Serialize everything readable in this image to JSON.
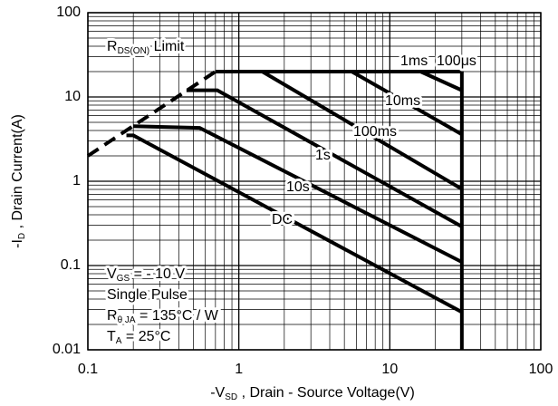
{
  "chart_data": {
    "type": "line",
    "xlabel": [
      {
        "text": "-V"
      },
      {
        "sub": "SD"
      },
      {
        "text": " , Drain - Source Voltage(V)"
      }
    ],
    "ylabel": [
      {
        "text": "-I"
      },
      {
        "sub": "D"
      },
      {
        "text": " , Drain Current(A)"
      }
    ],
    "xscale": "log",
    "yscale": "log",
    "grid": true,
    "xlim": [
      0.1,
      100
    ],
    "ylim": [
      0.01,
      100
    ],
    "xticks": [
      0.1,
      1,
      10,
      100
    ],
    "yticks": [
      0.01,
      0.1,
      1,
      10,
      100
    ],
    "color": "#000000",
    "series": [
      {
        "style": "dashed",
        "x": [
          0.1,
          0.7
        ],
        "values": [
          2,
          20
        ]
      },
      {
        "style": "solid",
        "x": [
          0.7,
          30,
          30
        ],
        "values": [
          20,
          20,
          0.01
        ]
      },
      {
        "name": "DC",
        "style": "solid",
        "x": [
          0.18,
          0.2,
          30
        ],
        "values": [
          3.5,
          3.5,
          0.028
        ]
      },
      {
        "name": "10s",
        "style": "solid",
        "x": [
          0.2,
          0.55,
          30
        ],
        "values": [
          4.5,
          4.3,
          0.11
        ]
      },
      {
        "name": "1s",
        "style": "solid",
        "x": [
          0.45,
          0.72,
          30
        ],
        "values": [
          12,
          12,
          0.29
        ]
      },
      {
        "name": "100ms",
        "style": "solid",
        "x": [
          1.43,
          30
        ],
        "values": [
          20,
          0.81
        ]
      },
      {
        "name": "10ms",
        "style": "solid",
        "x": [
          5.6,
          30
        ],
        "values": [
          20,
          3.6
        ]
      },
      {
        "name": "1ms",
        "style": "solid",
        "x": [
          16,
          30
        ],
        "values": [
          20,
          12
        ]
      }
    ],
    "annotations": [
      "100μs"
    ],
    "limit_label": [
      {
        "text": "R"
      },
      {
        "sub": "DS(ON)"
      },
      {
        "text": " Limit"
      }
    ],
    "notes": [
      [
        {
          "text": "V"
        },
        {
          "sub": "GS"
        },
        {
          "text": " = - 10 V"
        }
      ],
      [
        {
          "text": "Single Pulse"
        }
      ],
      [
        {
          "text": "R"
        },
        {
          "sub": "θ JA"
        },
        {
          "text": " = 135°C / W"
        }
      ],
      [
        {
          "text": "T"
        },
        {
          "sub": "A"
        },
        {
          "text": " = 25°C"
        }
      ]
    ]
  }
}
